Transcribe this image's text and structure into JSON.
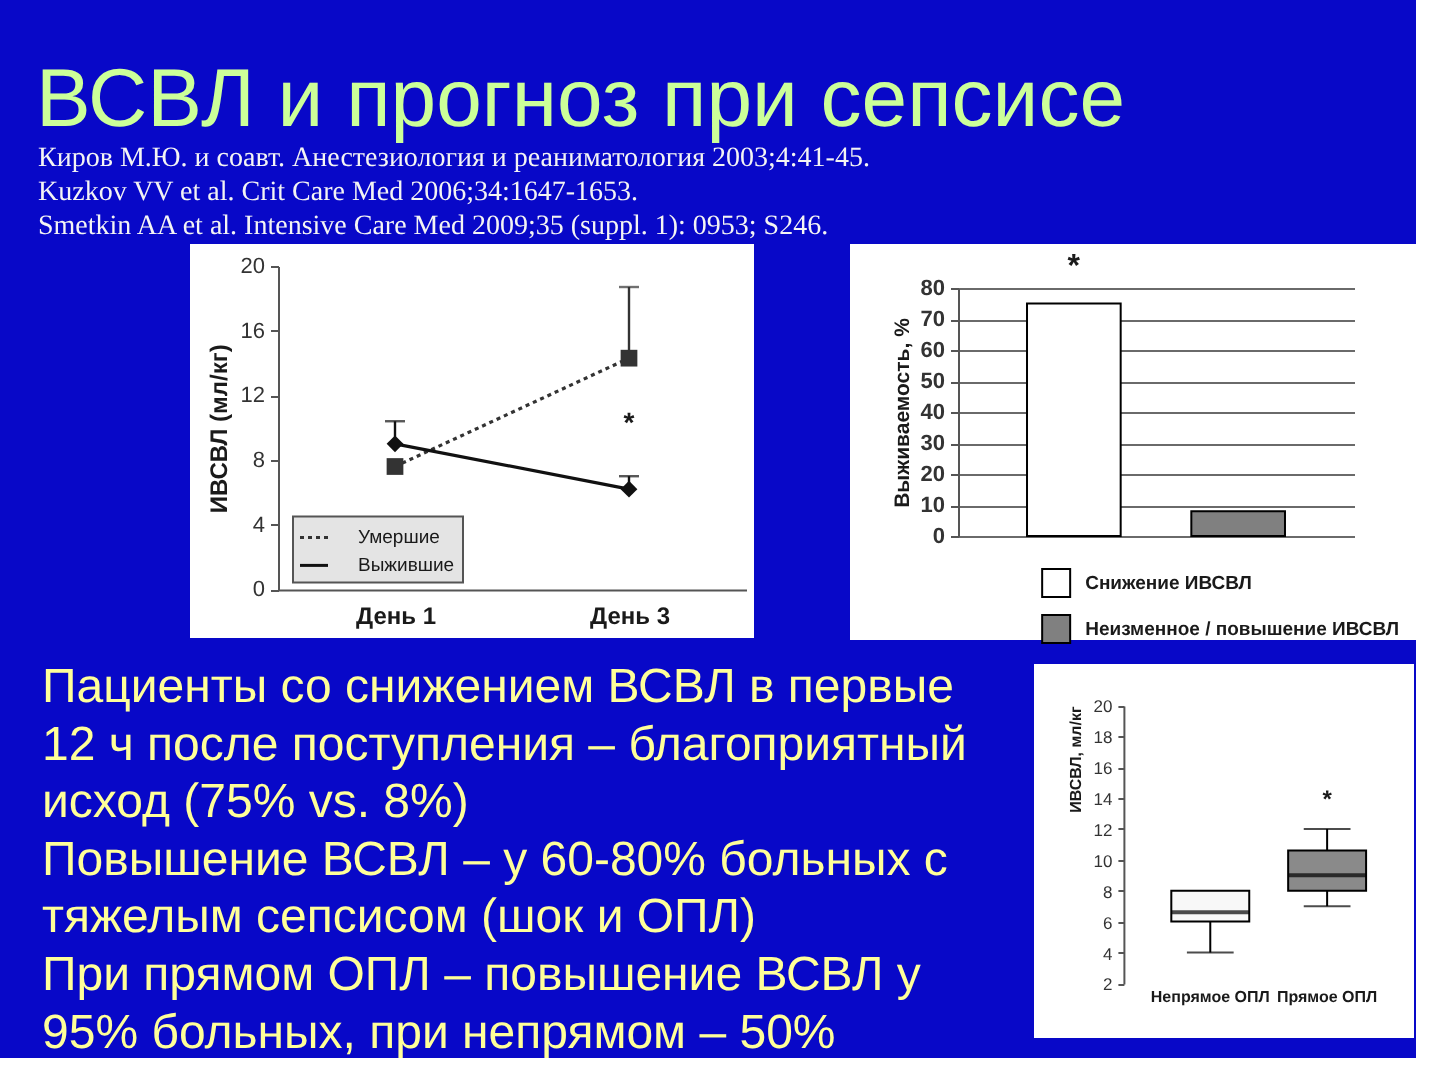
{
  "chart_data": [
    {
      "type": "other",
      "title": "ВСВЛ и прогноз при сепсисе",
      "annotations": [
        "Киров М.Ю. и соавт. Анестезиология и реаниматология 2003;4:41-45.",
        "Kuzkov VV et al. Crit Care Med 2006;34:1647-1653.",
        "Smetkin AA et al. Intensive Care Med 2009;35 (suppl. 1): 0953; S246."
      ]
    },
    {
      "type": "line",
      "categories": [
        "День 1",
        "День 3"
      ],
      "ylabel": "ИВСВЛ (мл/кг)",
      "ylim": [
        0,
        20
      ],
      "yticks": [
        0,
        4,
        8,
        12,
        16,
        20
      ],
      "legend": "bottom left",
      "series": [
        {
          "name": "Умершие",
          "color": "#333333",
          "values": [
            7.6,
            14.3
          ],
          "errors": [
            null,
            [
              14.3,
              18.7
            ]
          ],
          "marker": "square",
          "line_style": "dotted"
        },
        {
          "name": "Выжившие",
          "color": "#111111",
          "values": [
            9.0,
            6.2
          ],
          "errors": [
            [
              9.0,
              10.4
            ],
            [
              6.2,
              7.0
            ]
          ],
          "marker": "diamond",
          "line_style": "solid"
        }
      ],
      "annotations": [
        "*"
      ]
    },
    {
      "type": "bar",
      "categories": [
        null,
        null
      ],
      "ylabel": "Выживаемость, %",
      "ylim": [
        0,
        80
      ],
      "yticks": [
        0,
        10,
        20,
        30,
        40,
        50,
        60,
        70,
        80
      ],
      "grid": "y",
      "legend": "bottom",
      "series": [
        {
          "name": "Снижение ИВСВЛ",
          "color": "#ffffff",
          "values": [
            75,
            null
          ]
        },
        {
          "name": "Неизменное / повышение ИВСВЛ",
          "color": "#808080",
          "values": [
            null,
            8
          ]
        }
      ],
      "annotations": [
        "*"
      ]
    },
    {
      "type": "other",
      "annotations": [
        "Пациенты со снижением ВСВЛ в первые",
        "12 ч после поступления – благоприятный",
        "исход (75% vs. 8%)",
        "Повышение ВСВЛ – у 60-80% больных с",
        "тяжелым сепсисом (шок и ОПЛ)",
        "При прямом ОПЛ – повышение ВСВЛ у",
        "95% больных, при непрямом – 50%"
      ]
    },
    {
      "type": "box",
      "categories": [
        "Непрямое ОПЛ",
        "Прямое ОПЛ"
      ],
      "ylabel": "ИВСВЛ, мл/кг",
      "ylim": [
        2,
        20
      ],
      "yticks": [
        2,
        4,
        6,
        8,
        10,
        12,
        14,
        16,
        18,
        20
      ],
      "boxes": [
        {
          "low": 4.0,
          "q1": 6.0,
          "median": 6.6,
          "q3": 8.0,
          "high": 8.0
        },
        {
          "low": 7.0,
          "q1": 8.0,
          "median": 9.0,
          "q3": 10.6,
          "high": 12.0
        }
      ],
      "colors": [
        "#f8f8f8",
        "#8a8a8a"
      ],
      "annotations": [
        "*"
      ]
    }
  ]
}
